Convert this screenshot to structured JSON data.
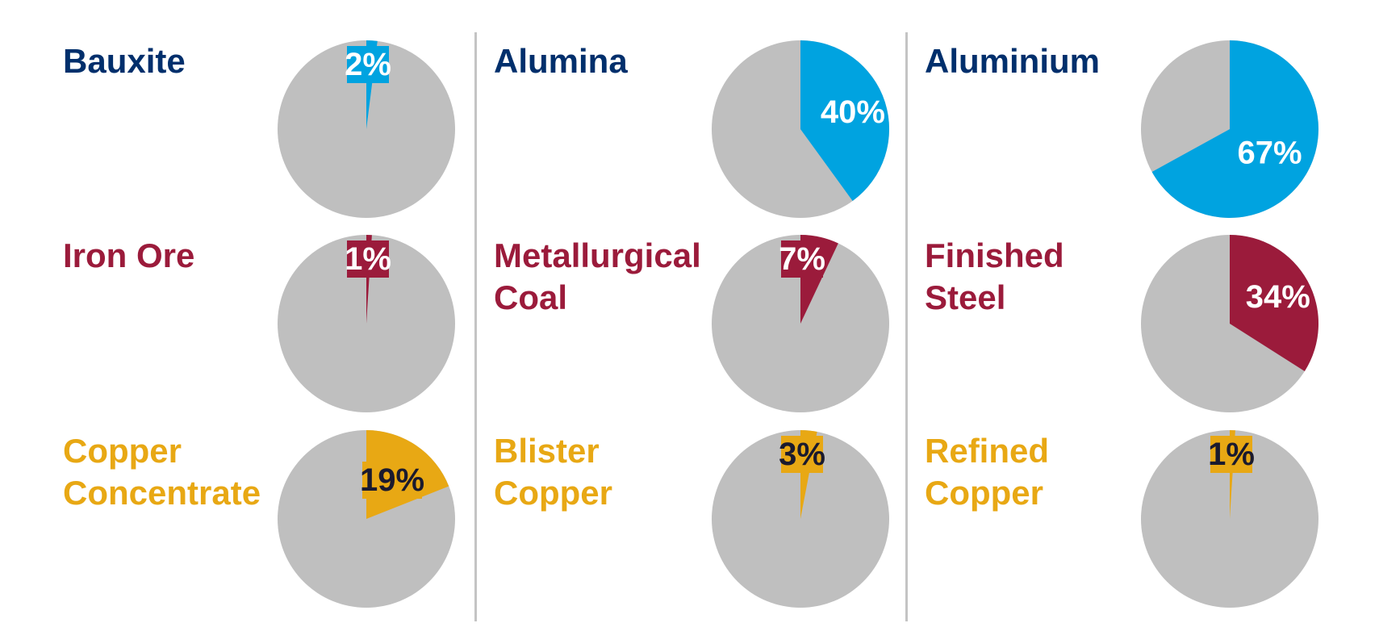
{
  "chart_data": [
    {
      "type": "pie",
      "group": "aluminium",
      "label": "Bauxite",
      "value_pct": 2,
      "value_label": "2%",
      "highlight_color": "#00a3e0",
      "rest_color": "#bfbfbf",
      "title_color": "#002f6c",
      "text_color": "#ffffff"
    },
    {
      "type": "pie",
      "group": "aluminium",
      "label": "Alumina",
      "value_pct": 40,
      "value_label": "40%",
      "highlight_color": "#00a3e0",
      "rest_color": "#bfbfbf",
      "title_color": "#002f6c",
      "text_color": "#ffffff"
    },
    {
      "type": "pie",
      "group": "aluminium",
      "label": "Aluminium",
      "value_pct": 67,
      "value_label": "67%",
      "highlight_color": "#00a3e0",
      "rest_color": "#bfbfbf",
      "title_color": "#002f6c",
      "text_color": "#ffffff"
    },
    {
      "type": "pie",
      "group": "steel",
      "label": "Iron Ore",
      "value_pct": 1,
      "value_label": "1%",
      "highlight_color": "#9b1b3b",
      "rest_color": "#bfbfbf",
      "title_color": "#9b1b3b",
      "text_color": "#ffffff"
    },
    {
      "type": "pie",
      "group": "steel",
      "label": "Metallurgical Coal",
      "value_pct": 7,
      "value_label": "7%",
      "highlight_color": "#9b1b3b",
      "rest_color": "#bfbfbf",
      "title_color": "#9b1b3b",
      "text_color": "#ffffff"
    },
    {
      "type": "pie",
      "group": "steel",
      "label": "Finished Steel",
      "value_pct": 34,
      "value_label": "34%",
      "highlight_color": "#9b1b3b",
      "rest_color": "#bfbfbf",
      "title_color": "#9b1b3b",
      "text_color": "#ffffff"
    },
    {
      "type": "pie",
      "group": "copper",
      "label": "Copper Concentrate",
      "value_pct": 19,
      "value_label": "19%",
      "highlight_color": "#e8a814",
      "rest_color": "#bfbfbf",
      "title_color": "#e8a814",
      "text_color": "#1a1a2e"
    },
    {
      "type": "pie",
      "group": "copper",
      "label": "Blister Copper",
      "value_pct": 3,
      "value_label": "3%",
      "highlight_color": "#e8a814",
      "rest_color": "#bfbfbf",
      "title_color": "#e8a814",
      "text_color": "#1a1a2e"
    },
    {
      "type": "pie",
      "group": "copper",
      "label": "Refined Copper",
      "value_pct": 1,
      "value_label": "1%",
      "highlight_color": "#e8a814",
      "rest_color": "#bfbfbf",
      "title_color": "#e8a814",
      "text_color": "#1a1a2e"
    }
  ],
  "colors": {
    "divider": "#c4c4c4",
    "background": "#ffffff"
  }
}
